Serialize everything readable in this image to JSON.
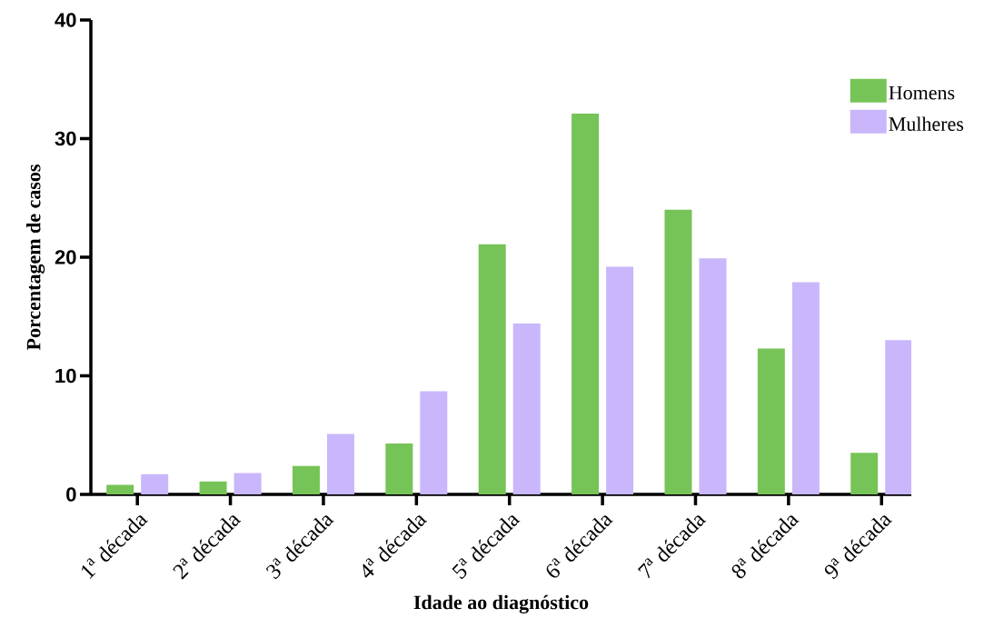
{
  "chart_data": {
    "type": "bar",
    "xlabel": "Idade ao diagnóstico",
    "ylabel": "Porcentagem de casos",
    "categories": [
      "1$^{a}$ década",
      "2$^{a}$ década",
      "3$^{a}$ década",
      "4$^{a}$ década",
      "5$^{a}$ década",
      "6$^{a}$ década",
      "7$^{a}$ década",
      "8$^{a}$ década",
      "9$^{a}$ década"
    ],
    "series": [
      {
        "name": "Homens",
        "color": "#76c457",
        "values": [
          0.8,
          1.1,
          2.4,
          4.3,
          21.1,
          32.1,
          24.0,
          12.3,
          3.5
        ]
      },
      {
        "name": "Mulheres",
        "color": "#c9b6fb",
        "values": [
          1.7,
          1.8,
          5.1,
          8.7,
          14.4,
          19.2,
          19.9,
          17.9,
          13.0
        ]
      }
    ],
    "ylim": [
      0,
      40
    ],
    "yticks": [
      0,
      10,
      20,
      30,
      40
    ],
    "grid": false,
    "legend": "top right"
  }
}
